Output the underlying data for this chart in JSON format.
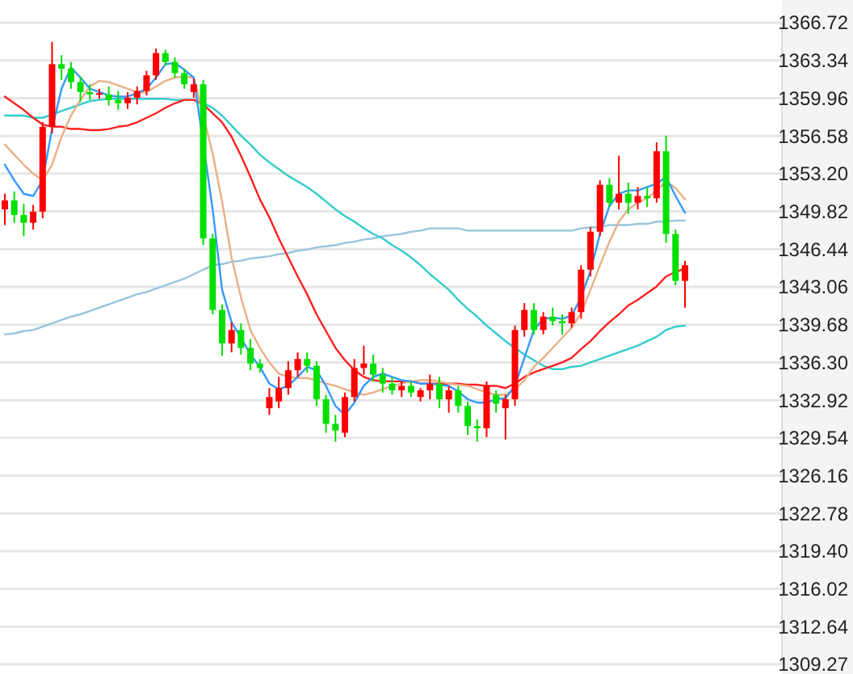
{
  "chart_data": {
    "type": "candlestick",
    "categories": [
      null,
      null,
      null,
      null,
      null,
      null,
      null,
      null,
      null,
      null,
      null,
      null,
      null,
      null,
      null,
      null,
      null,
      null,
      null,
      null,
      null,
      null,
      null,
      null,
      null,
      null,
      null,
      null,
      null,
      null,
      null,
      null,
      null,
      null,
      null,
      null,
      null,
      null,
      null,
      null,
      null,
      null,
      null,
      null,
      null,
      null,
      null,
      null,
      null,
      null,
      null,
      null,
      null,
      null,
      null,
      null,
      null,
      null,
      null,
      null,
      null,
      null,
      null,
      null,
      null,
      null,
      null,
      null,
      null,
      null,
      null,
      null,
      null
    ],
    "ohlc": [
      [
        1350.0,
        1351.4,
        1348.6,
        1350.8
      ],
      [
        1350.8,
        1351.6,
        1348.8,
        1349.5
      ],
      [
        1349.5,
        1350.5,
        1347.6,
        1348.8
      ],
      [
        1348.8,
        1350.4,
        1348.2,
        1349.8
      ],
      [
        1349.8,
        1357.8,
        1349.2,
        1357.4
      ],
      [
        1357.4,
        1365.0,
        1356.8,
        1363.0
      ],
      [
        1363.0,
        1363.8,
        1361.6,
        1362.6
      ],
      [
        1362.6,
        1363.2,
        1360.8,
        1361.4
      ],
      [
        1361.4,
        1361.9,
        1359.6,
        1360.5
      ],
      [
        1360.5,
        1361.2,
        1359.8,
        1360.3
      ],
      [
        1360.3,
        1360.8,
        1359.9,
        1360.4
      ],
      [
        1360.3,
        1361.0,
        1359.3,
        1359.8
      ],
      [
        1359.8,
        1360.6,
        1358.9,
        1359.5
      ],
      [
        1359.5,
        1360.5,
        1359.0,
        1360.0
      ],
      [
        1360.0,
        1361.0,
        1359.4,
        1360.6
      ],
      [
        1360.6,
        1362.4,
        1360.2,
        1362.0
      ],
      [
        1362.0,
        1364.4,
        1361.6,
        1364.0
      ],
      [
        1364.0,
        1364.3,
        1362.9,
        1363.2
      ],
      [
        1363.2,
        1363.6,
        1361.8,
        1362.2
      ],
      [
        1362.2,
        1362.6,
        1360.8,
        1361.2
      ],
      [
        1360.5,
        1361.7,
        1360.0,
        1361.2
      ],
      [
        1361.2,
        1361.6,
        1346.8,
        1347.4
      ],
      [
        1347.4,
        1347.8,
        1340.6,
        1341.0
      ],
      [
        1341.0,
        1341.5,
        1336.9,
        1338.0
      ],
      [
        1338.0,
        1339.9,
        1337.2,
        1339.2
      ],
      [
        1339.2,
        1339.8,
        1337.0,
        1337.6
      ],
      [
        1337.6,
        1338.4,
        1335.6,
        1336.2
      ],
      [
        1336.2,
        1336.6,
        1335.4,
        1335.8
      ],
      [
        1332.2,
        1334.0,
        1331.6,
        1333.2
      ],
      [
        1332.8,
        1335.0,
        1332.2,
        1334.0
      ],
      [
        1334.0,
        1336.4,
        1333.4,
        1335.6
      ],
      [
        1335.6,
        1337.2,
        1335.0,
        1336.6
      ],
      [
        1336.6,
        1337.2,
        1335.4,
        1336.0
      ],
      [
        1336.0,
        1336.4,
        1332.4,
        1333.0
      ],
      [
        1333.0,
        1333.4,
        1330.0,
        1330.8
      ],
      [
        1330.8,
        1331.6,
        1329.2,
        1330.2
      ],
      [
        1330.0,
        1333.6,
        1329.6,
        1333.2
      ],
      [
        1333.2,
        1336.6,
        1332.8,
        1335.8
      ],
      [
        1335.8,
        1337.8,
        1335.2,
        1336.2
      ],
      [
        1336.2,
        1337.0,
        1334.6,
        1335.2
      ],
      [
        1335.2,
        1335.8,
        1333.6,
        1334.4
      ],
      [
        1334.4,
        1335.0,
        1333.4,
        1333.8
      ],
      [
        1333.8,
        1334.6,
        1333.2,
        1334.2
      ],
      [
        1334.2,
        1334.6,
        1333.2,
        1333.6
      ],
      [
        1333.2,
        1334.0,
        1332.8,
        1333.8
      ],
      [
        1333.8,
        1335.2,
        1333.0,
        1334.4
      ],
      [
        1334.4,
        1335.0,
        1332.2,
        1333.0
      ],
      [
        1333.0,
        1334.2,
        1331.8,
        1333.8
      ],
      [
        1333.8,
        1334.2,
        1331.8,
        1332.4
      ],
      [
        1332.4,
        1332.8,
        1329.8,
        1330.6
      ],
      [
        1330.6,
        1331.2,
        1329.2,
        1330.4
      ],
      [
        1330.4,
        1334.6,
        1329.6,
        1334.2
      ],
      [
        1333.4,
        1333.8,
        1331.8,
        1332.6
      ],
      [
        1332.2,
        1333.4,
        1329.4,
        1333.0
      ],
      [
        1333.0,
        1339.6,
        1332.4,
        1339.2
      ],
      [
        1339.2,
        1341.6,
        1338.6,
        1341.0
      ],
      [
        1341.0,
        1341.6,
        1338.8,
        1339.2
      ],
      [
        1339.2,
        1340.8,
        1338.8,
        1340.4
      ],
      [
        1340.4,
        1341.2,
        1339.6,
        1340.0
      ],
      [
        1340.0,
        1340.6,
        1338.8,
        1339.8
      ],
      [
        1339.8,
        1341.2,
        1339.4,
        1340.8
      ],
      [
        1340.8,
        1345.0,
        1340.2,
        1344.6
      ],
      [
        1344.6,
        1348.4,
        1344.0,
        1348.0
      ],
      [
        1348.0,
        1352.6,
        1347.6,
        1352.2
      ],
      [
        1352.2,
        1352.8,
        1350.2,
        1350.6
      ],
      [
        1350.6,
        1354.8,
        1350.0,
        1351.4
      ],
      [
        1351.4,
        1352.4,
        1349.6,
        1350.6
      ],
      [
        1350.6,
        1352.0,
        1350.0,
        1351.2
      ],
      [
        1351.2,
        1352.0,
        1350.2,
        1351.0
      ],
      [
        1351.0,
        1356.0,
        1350.6,
        1355.2
      ],
      [
        1355.2,
        1356.6,
        1347.0,
        1347.8
      ],
      [
        1347.8,
        1348.2,
        1343.2,
        1343.6
      ],
      [
        1343.6,
        1345.4,
        1341.2,
        1345.0
      ]
    ],
    "colors": [
      "#ff0000",
      "#00e000",
      "#00e000",
      "#ff0000",
      "#ff0000",
      "#ff0000",
      "#00e000",
      "#00e000",
      "#00e000",
      "#00e000",
      "#ff0000",
      "#00e000",
      "#00e000",
      "#ff0000",
      "#ff0000",
      "#ff0000",
      "#ff0000",
      "#00e000",
      "#00e000",
      "#00e000",
      "#ff0000",
      "#00e000",
      "#00e000",
      "#00e000",
      "#ff0000",
      "#00e000",
      "#00e000",
      "#00e000",
      "#ff0000",
      "#ff0000",
      "#ff0000",
      "#ff0000",
      "#00e000",
      "#00e000",
      "#00e000",
      "#00e000",
      "#ff0000",
      "#ff0000",
      "#ff0000",
      "#00e000",
      "#00e000",
      "#00e000",
      "#ff0000",
      "#00e000",
      "#ff0000",
      "#ff0000",
      "#00e000",
      "#ff0000",
      "#00e000",
      "#00e000",
      "#00e000",
      "#ff0000",
      "#00e000",
      "#ff0000",
      "#ff0000",
      "#ff0000",
      "#00e000",
      "#ff0000",
      "#00e000",
      "#00e000",
      "#ff0000",
      "#ff0000",
      "#ff0000",
      "#ff0000",
      "#00e000",
      "#ff0000",
      "#00e000",
      "#ff0000",
      "#00e000",
      "#ff0000",
      "#00e000",
      "#00e000",
      "#ff0000"
    ],
    "series": [
      {
        "type": "line",
        "color": "#99c4dd",
        "values": [
          1338.8,
          1338.9,
          1339.1,
          1339.2,
          1339.5,
          1339.8,
          1340.1,
          1340.4,
          1340.6,
          1340.9,
          1341.2,
          1341.5,
          1341.8,
          1342.1,
          1342.4,
          1342.6,
          1342.9,
          1343.2,
          1343.5,
          1343.8,
          1344.2,
          1344.6,
          1345.0,
          1345.1,
          1345.3,
          1345.4,
          1345.6,
          1345.7,
          1345.8,
          1346.0,
          1346.1,
          1346.3,
          1346.4,
          1346.6,
          1346.7,
          1346.8,
          1347.0,
          1347.1,
          1347.3,
          1347.4,
          1347.6,
          1347.7,
          1347.8,
          1348.0,
          1348.1,
          1348.3,
          1348.3,
          1348.3,
          1348.3,
          1348.1,
          1348.1,
          1348.1,
          1348.1,
          1348.1,
          1348.1,
          1348.1,
          1348.1,
          1348.1,
          1348.1,
          1348.1,
          1348.1,
          1348.3,
          1348.4,
          1348.4,
          1348.6,
          1348.6,
          1348.6,
          1348.7,
          1348.7,
          1348.9,
          1348.9,
          1349.0,
          1349.0
        ]
      },
      {
        "type": "line",
        "color": "#33cccc",
        "values": [
          1358.4,
          1358.4,
          1358.4,
          1358.2,
          1358.2,
          1358.5,
          1358.8,
          1359.1,
          1359.4,
          1359.7,
          1359.8,
          1359.9,
          1359.9,
          1359.9,
          1359.9,
          1359.9,
          1359.9,
          1359.9,
          1359.8,
          1359.8,
          1359.8,
          1359.5,
          1359.1,
          1358.4,
          1357.5,
          1356.6,
          1355.8,
          1354.9,
          1354.2,
          1353.6,
          1353.0,
          1352.5,
          1352.0,
          1351.4,
          1350.7,
          1350.0,
          1349.4,
          1348.9,
          1348.3,
          1347.8,
          1347.4,
          1346.8,
          1346.3,
          1345.7,
          1345.0,
          1344.2,
          1343.5,
          1342.8,
          1341.9,
          1341.1,
          1340.4,
          1339.6,
          1338.9,
          1338.2,
          1337.6,
          1337.0,
          1336.5,
          1336.0,
          1335.7,
          1335.7,
          1335.9,
          1336.0,
          1336.3,
          1336.6,
          1336.9,
          1337.2,
          1337.5,
          1337.8,
          1338.2,
          1338.6,
          1339.2,
          1339.5,
          1339.6
        ]
      },
      {
        "type": "line",
        "color": "#ff2020",
        "values": [
          1360.1,
          1359.5,
          1358.9,
          1358.2,
          1357.6,
          1357.4,
          1357.4,
          1357.2,
          1357.2,
          1357.1,
          1357.1,
          1357.2,
          1357.4,
          1357.5,
          1357.8,
          1358.2,
          1358.6,
          1359.1,
          1359.5,
          1359.8,
          1359.8,
          1359.4,
          1358.6,
          1357.8,
          1356.5,
          1354.8,
          1352.9,
          1350.9,
          1349.3,
          1347.4,
          1345.7,
          1344.0,
          1342.4,
          1340.6,
          1339.1,
          1337.6,
          1336.5,
          1335.6,
          1335.0,
          1334.7,
          1334.6,
          1334.6,
          1334.6,
          1334.6,
          1334.4,
          1334.4,
          1334.4,
          1334.4,
          1334.4,
          1334.3,
          1334.3,
          1334.2,
          1334.2,
          1334.0,
          1334.4,
          1335.0,
          1335.4,
          1335.7,
          1336.0,
          1336.3,
          1336.7,
          1337.5,
          1338.2,
          1339.1,
          1339.9,
          1340.6,
          1341.4,
          1341.9,
          1342.5,
          1343.1,
          1344.0,
          1344.4,
          1344.7
        ]
      },
      {
        "type": "line",
        "color": "#e8b088",
        "values": [
          1355.8,
          1354.9,
          1354.0,
          1353.2,
          1352.6,
          1354.0,
          1356.5,
          1358.4,
          1359.8,
          1361.0,
          1361.5,
          1361.4,
          1361.1,
          1360.8,
          1360.5,
          1360.5,
          1361.0,
          1361.5,
          1361.8,
          1361.9,
          1361.8,
          null,
          1355.0,
          1350.7,
          1345.7,
          1342.1,
          1339.2,
          1337.6,
          1336.3,
          1335.3,
          1335.0,
          1334.9,
          1334.9,
          1334.7,
          1334.4,
          1334.2,
          1333.9,
          1333.6,
          1333.4,
          1333.6,
          1333.9,
          1334.2,
          1334.4,
          1334.6,
          1334.7,
          1334.7,
          1334.6,
          1334.4,
          1334.3,
          1334.2,
          1333.9,
          1333.6,
          1333.4,
          1333.4,
          1333.9,
          1334.7,
          1335.9,
          1336.7,
          1337.6,
          1338.5,
          1339.4,
          1340.7,
          1342.8,
          1345.0,
          1347.1,
          1348.9,
          1350.0,
          1350.6,
          1351.0,
          1351.7,
          1352.5,
          1351.9,
          1350.9
        ]
      },
      {
        "type": "line",
        "color": "#3399ff",
        "values": [
          1354.0,
          1352.6,
          1351.4,
          1351.2,
          1352.6,
          1357.2,
          1360.8,
          1362.7,
          1361.8,
          1360.8,
          1360.5,
          1360.2,
          1360.1,
          1360.1,
          1360.4,
          1360.8,
          1361.8,
          1363.0,
          1363.1,
          1362.5,
          1361.8,
          null,
          1350.0,
          1342.8,
          1339.9,
          1338.5,
          1337.0,
          1335.9,
          1334.4,
          1333.9,
          1334.2,
          1335.0,
          1335.9,
          1335.6,
          1334.2,
          1332.4,
          1331.6,
          1332.7,
          1334.2,
          1335.0,
          1335.3,
          1335.0,
          1334.7,
          1334.6,
          1334.4,
          1334.4,
          1334.3,
          1334.2,
          1333.7,
          1333.0,
          1332.7,
          1332.7,
          1333.0,
          1333.1,
          1334.2,
          1336.7,
          1339.2,
          1340.2,
          1340.3,
          1340.2,
          1340.5,
          1342.1,
          1344.5,
          1347.8,
          1350.3,
          1351.4,
          1351.7,
          1351.7,
          1352.0,
          1352.3,
          1352.9,
          1351.2,
          1349.7
        ]
      }
    ],
    "ylim": [
      1309.27,
      1366.72
    ],
    "yticks": [
      1366.72,
      1363.34,
      1359.96,
      1356.58,
      {
        "value": 1353.2,
        "label": "1353.20"
      },
      1349.82,
      1346.44,
      1343.06,
      1339.68,
      {
        "value": 1336.3,
        "label": "1336.30"
      },
      1332.92,
      1329.54,
      1326.16,
      1322.78,
      {
        "value": 1319.4,
        "label": "1319.40"
      },
      1316.02,
      1312.64,
      1309.27
    ],
    "grid": "y",
    "tick_labels": "y"
  }
}
